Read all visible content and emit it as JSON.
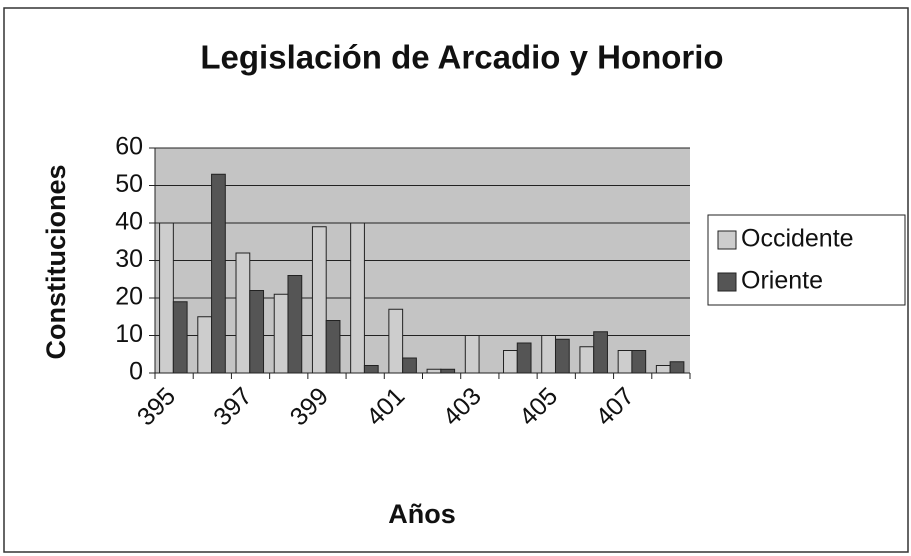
{
  "chart_data": {
    "type": "bar",
    "title": "Legislación de Arcadio y Honorio",
    "x_label": "Años",
    "y_label": "Constituciones",
    "categories": [
      "395",
      null,
      "397",
      null,
      "399",
      null,
      "401",
      null,
      "403",
      null,
      "405",
      null,
      "407",
      null
    ],
    "series": [
      {
        "name": "Occidente",
        "color": "#cdcdcd",
        "values": [
          40,
          15,
          32,
          21,
          39,
          40,
          17,
          1,
          10,
          6,
          10,
          7,
          6,
          2
        ]
      },
      {
        "name": "Oriente",
        "color": "#555555",
        "values": [
          19,
          53,
          22,
          26,
          14,
          2,
          4,
          1,
          0,
          8,
          9,
          11,
          6,
          3
        ]
      }
    ],
    "ylim": [
      0,
      60
    ],
    "yticks": [
      0,
      10,
      20,
      30,
      40,
      50,
      60
    ],
    "grid": true,
    "legend": "right"
  }
}
